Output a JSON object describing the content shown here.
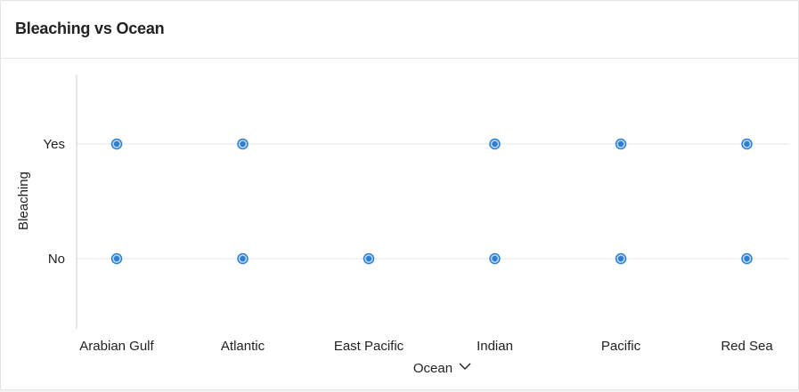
{
  "card": {
    "title": "Bleaching vs Ocean"
  },
  "chart_data": {
    "type": "scatter",
    "title": "Bleaching vs Ocean",
    "xlabel": "Ocean",
    "ylabel": "Bleaching",
    "x_categories": [
      "Arabian Gulf",
      "Atlantic",
      "East Pacific",
      "Indian",
      "Pacific",
      "Red Sea"
    ],
    "y_categories": [
      "No",
      "Yes"
    ],
    "points": [
      {
        "x": "Arabian Gulf",
        "y": "Yes"
      },
      {
        "x": "Atlantic",
        "y": "Yes"
      },
      {
        "x": "Indian",
        "y": "Yes"
      },
      {
        "x": "Pacific",
        "y": "Yes"
      },
      {
        "x": "Red Sea",
        "y": "Yes"
      },
      {
        "x": "Arabian Gulf",
        "y": "No"
      },
      {
        "x": "Atlantic",
        "y": "No"
      },
      {
        "x": "East Pacific",
        "y": "No"
      },
      {
        "x": "Indian",
        "y": "No"
      },
      {
        "x": "Pacific",
        "y": "No"
      },
      {
        "x": "Red Sea",
        "y": "No"
      }
    ],
    "grid": "horizontal",
    "colors": {
      "point_fill": "#2f7fd1",
      "point_ring": "#bcd8f3",
      "grid": "#e6e6e6",
      "axis": "#cfcfcf"
    }
  },
  "icons": {
    "x_axis_dropdown": "chevron-down-icon"
  }
}
